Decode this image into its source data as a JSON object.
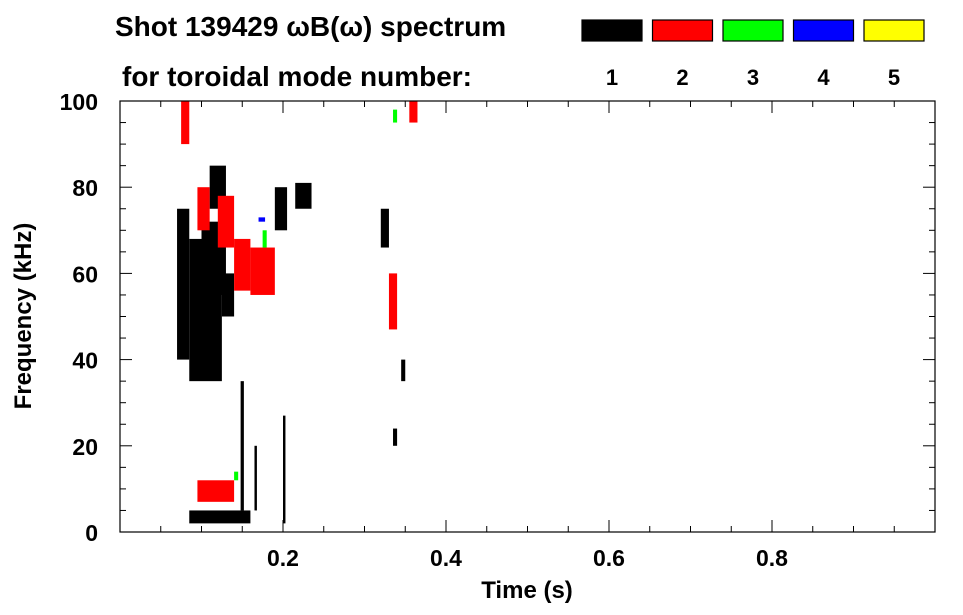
{
  "chart_data": {
    "type": "heatmap",
    "title_line1": "Shot 139429 ωB(ω) spectrum",
    "title_line2": "for toroidal mode number:",
    "xlabel": "Time (s)",
    "ylabel": "Frequency (kHz)",
    "xlim": [
      0.0,
      1.0
    ],
    "ylim": [
      0,
      100
    ],
    "xticks": [
      {
        "value": 0.2,
        "label": "0.2"
      },
      {
        "value": 0.4,
        "label": "0.4"
      },
      {
        "value": 0.6,
        "label": "0.6"
      },
      {
        "value": 0.8,
        "label": "0.8"
      }
    ],
    "yticks": [
      {
        "value": 0,
        "label": "0"
      },
      {
        "value": 20,
        "label": "20"
      },
      {
        "value": 40,
        "label": "40"
      },
      {
        "value": 60,
        "label": "60"
      },
      {
        "value": 80,
        "label": "80"
      },
      {
        "value": 100,
        "label": "100"
      }
    ],
    "legend": [
      {
        "n": "1",
        "color": "#000000"
      },
      {
        "n": "2",
        "color": "#ff0000"
      },
      {
        "n": "3",
        "color": "#00ff00"
      },
      {
        "n": "4",
        "color": "#0000ff"
      },
      {
        "n": "5",
        "color": "#ffff00"
      }
    ],
    "grid": false,
    "series": [
      {
        "mode": 1,
        "color": "#000000",
        "regions": [
          {
            "t": [
              0.07,
              0.085
            ],
            "f": [
              40,
              75
            ]
          },
          {
            "t": [
              0.085,
              0.125
            ],
            "f": [
              35,
              68
            ]
          },
          {
            "t": [
              0.1,
              0.13
            ],
            "f": [
              55,
              72
            ]
          },
          {
            "t": [
              0.125,
              0.14
            ],
            "f": [
              50,
              60
            ]
          },
          {
            "t": [
              0.11,
              0.13
            ],
            "f": [
              75,
              85
            ]
          },
          {
            "t": [
              0.19,
              0.205
            ],
            "f": [
              70,
              80
            ]
          },
          {
            "t": [
              0.215,
              0.235
            ],
            "f": [
              75,
              81
            ]
          },
          {
            "t": [
              0.32,
              0.33
            ],
            "f": [
              66,
              75
            ]
          },
          {
            "t": [
              0.085,
              0.16
            ],
            "f": [
              2,
              5
            ]
          },
          {
            "t": [
              0.148,
              0.152
            ],
            "f": [
              5,
              35
            ]
          },
          {
            "t": [
              0.165,
              0.168
            ],
            "f": [
              5,
              20
            ]
          },
          {
            "t": [
              0.2,
              0.203
            ],
            "f": [
              2,
              27
            ]
          },
          {
            "t": [
              0.345,
              0.35
            ],
            "f": [
              35,
              40
            ]
          },
          {
            "t": [
              0.335,
              0.34
            ],
            "f": [
              20,
              24
            ]
          }
        ]
      },
      {
        "mode": 2,
        "color": "#ff0000",
        "regions": [
          {
            "t": [
              0.095,
              0.11
            ],
            "f": [
              70,
              80
            ]
          },
          {
            "t": [
              0.12,
              0.14
            ],
            "f": [
              66,
              78
            ]
          },
          {
            "t": [
              0.14,
              0.16
            ],
            "f": [
              56,
              68
            ]
          },
          {
            "t": [
              0.16,
              0.19
            ],
            "f": [
              55,
              66
            ]
          },
          {
            "t": [
              0.075,
              0.085
            ],
            "f": [
              90,
              100
            ]
          },
          {
            "t": [
              0.33,
              0.34
            ],
            "f": [
              47,
              60
            ]
          },
          {
            "t": [
              0.355,
              0.365
            ],
            "f": [
              95,
              100
            ]
          },
          {
            "t": [
              0.095,
              0.14
            ],
            "f": [
              7,
              12
            ]
          }
        ]
      },
      {
        "mode": 3,
        "color": "#00ff00",
        "regions": [
          {
            "t": [
              0.175,
              0.18
            ],
            "f": [
              66,
              70
            ]
          },
          {
            "t": [
              0.14,
              0.145
            ],
            "f": [
              12,
              14
            ]
          },
          {
            "t": [
              0.335,
              0.34
            ],
            "f": [
              95,
              98
            ]
          }
        ]
      },
      {
        "mode": 4,
        "color": "#0000ff",
        "regions": [
          {
            "t": [
              0.17,
              0.178
            ],
            "f": [
              72,
              73
            ]
          }
        ]
      },
      {
        "mode": 5,
        "color": "#ffff00",
        "regions": []
      }
    ]
  }
}
